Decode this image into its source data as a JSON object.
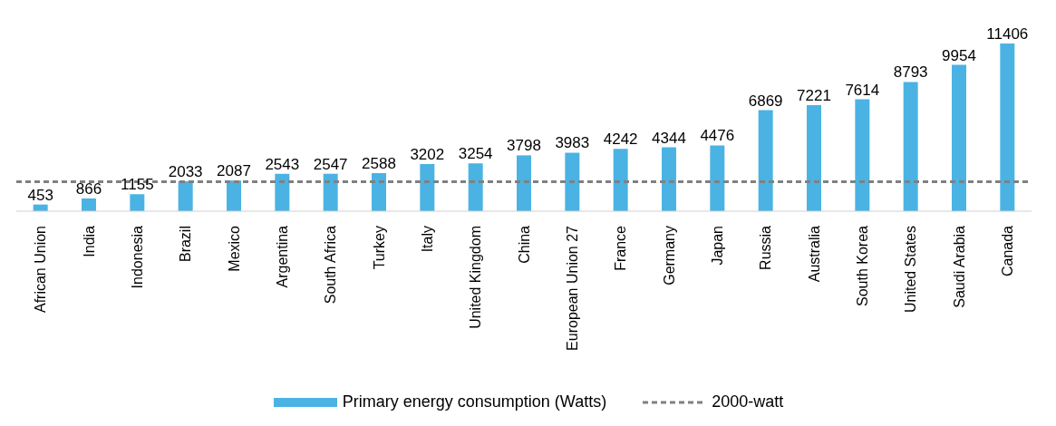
{
  "chart_data": {
    "type": "bar",
    "categories": [
      "African Union",
      "India",
      "Indonesia",
      "Brazil",
      "Mexico",
      "Argentina",
      "South Africa",
      "Turkey",
      "Italy",
      "United Kingdom",
      "China",
      "European Union 27",
      "France",
      "Germany",
      "Japan",
      "Russia",
      "Australia",
      "South Korea",
      "United States",
      "Saudi Arabia",
      "Canada"
    ],
    "series": [
      {
        "name": "Primary energy consumption (Watts)",
        "color": "#4ab3e3",
        "values": [
          453,
          866,
          1155,
          2033,
          2087,
          2543,
          2547,
          2588,
          3202,
          3254,
          3798,
          3983,
          4242,
          4344,
          4476,
          6869,
          7221,
          7614,
          8793,
          9954,
          11406
        ]
      }
    ],
    "data_labels": true,
    "ref_lines": [
      {
        "axis": "y",
        "value": 2000,
        "label": "2000-watt",
        "color": "#808080",
        "line_style": "dashed"
      }
    ],
    "legend": "bottom"
  }
}
